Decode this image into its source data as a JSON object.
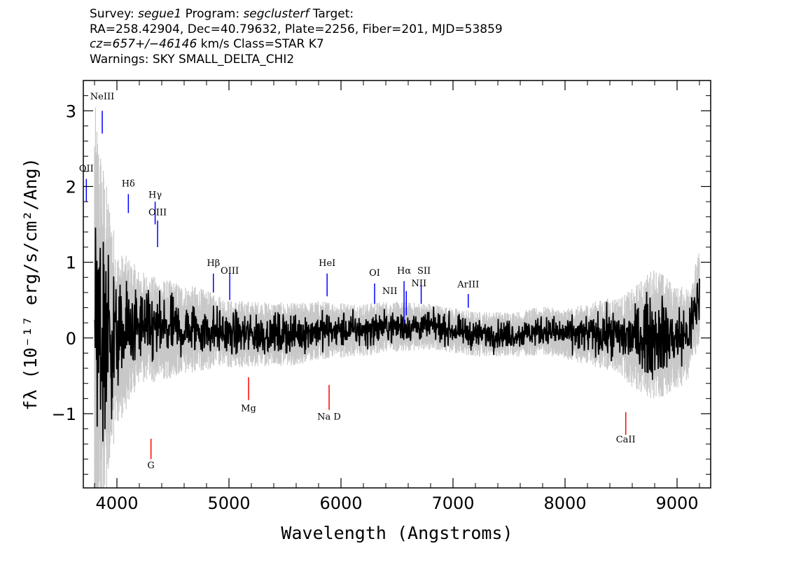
{
  "header": {
    "line1": {
      "survey_label": "Survey: ",
      "survey": "segue1",
      "program_label": " Program: ",
      "program": "segclusterf",
      "target_label": " Target:"
    },
    "line2": "RA=258.42904, Dec=40.79632, Plate=2256, Fiber=201, MJD=53859",
    "line3": {
      "cz": "cz=657+/−46146",
      "rest": " km/s Class=STAR K7"
    },
    "line4": "Warnings: SKY SMALL_DELTA_CHI2"
  },
  "chart_data": {
    "type": "line",
    "xlabel": "Wavelength (Angstroms)",
    "ylabel": "fλ (10⁻¹⁷ erg/s/cm²/Ang)",
    "xlim": [
      3700,
      9300
    ],
    "ylim": [
      -1.98,
      3.4
    ],
    "x_ticks": [
      4000,
      5000,
      6000,
      7000,
      8000,
      9000
    ],
    "y_ticks": [
      -1,
      0,
      1,
      2,
      3
    ],
    "y_tick_labels": [
      "−1",
      "0",
      "1",
      "2",
      "3"
    ],
    "grid": false,
    "series": [
      {
        "role": "flux",
        "color": "#000000",
        "x": [
          3800,
          3850,
          3900,
          3950,
          4000,
          4100,
          4200,
          4300,
          4400,
          4500,
          4600,
          4700,
          4800,
          4900,
          5000,
          5200,
          5400,
          5600,
          5800,
          6000,
          6200,
          6400,
          6600,
          6800,
          7000,
          7200,
          7400,
          7600,
          7800,
          8000,
          8200,
          8400,
          8600,
          8800,
          9000,
          9100,
          9200
        ],
        "y": [
          0.15,
          0.05,
          0.0,
          0.05,
          -0.05,
          0.1,
          0.15,
          0.12,
          0.1,
          0.12,
          0.1,
          0.12,
          0.1,
          0.1,
          0.05,
          0.05,
          0.05,
          0.05,
          0.1,
          0.1,
          0.1,
          0.15,
          0.15,
          0.15,
          0.1,
          0.05,
          0.05,
          0.05,
          0.1,
          0.05,
          0.05,
          0.05,
          0.0,
          0.05,
          0.0,
          0.05,
          0.55
        ]
      },
      {
        "role": "error",
        "color": "#c8c8c8",
        "x": [
          3800,
          4000,
          4200,
          4400,
          4600,
          4800,
          5000,
          5500,
          6000,
          6500,
          7000,
          7500,
          8000,
          8500,
          8800,
          9000,
          9200
        ],
        "y": [
          2.0,
          0.8,
          0.5,
          0.45,
          0.4,
          0.35,
          0.3,
          0.28,
          0.25,
          0.22,
          0.2,
          0.2,
          0.22,
          0.35,
          0.6,
          0.45,
          0.4
        ]
      }
    ],
    "emission_lines": [
      {
        "label": "NeIII",
        "x": 3869,
        "color": "#0000ff"
      },
      {
        "label": "OII",
        "x": 3727,
        "color": "#0000ff"
      },
      {
        "label": "Hδ",
        "x": 4102,
        "color": "#0000ff"
      },
      {
        "label": "Hγ",
        "x": 4341,
        "color": "#0000ff"
      },
      {
        "label": "OIII",
        "x": 4363,
        "color": "#0000ff"
      },
      {
        "label": "Hβ",
        "x": 4861,
        "color": "#0000ff"
      },
      {
        "label": "OIII",
        "x": 5007,
        "color": "#0000ff"
      },
      {
        "label": "HeI",
        "x": 5876,
        "color": "#0000ff"
      },
      {
        "label": "OI",
        "x": 6300,
        "color": "#0000ff"
      },
      {
        "label": "NII",
        "x": 6548,
        "color": "#0000ff"
      },
      {
        "label": "Hα",
        "x": 6563,
        "color": "#0000ff"
      },
      {
        "label": "NII",
        "x": 6583,
        "color": "#0000ff"
      },
      {
        "label": "SII",
        "x": 6716,
        "color": "#0000ff"
      },
      {
        "label": "ArIII",
        "x": 7136,
        "color": "#0000ff"
      }
    ],
    "absorption_lines": [
      {
        "label": "G",
        "x": 4304,
        "color": "#ff0000"
      },
      {
        "label": "Mg",
        "x": 5175,
        "color": "#ff0000"
      },
      {
        "label": "Na D",
        "x": 5894,
        "color": "#ff0000"
      },
      {
        "label": "CaII",
        "x": 8542,
        "color": "#ff0000"
      }
    ]
  }
}
